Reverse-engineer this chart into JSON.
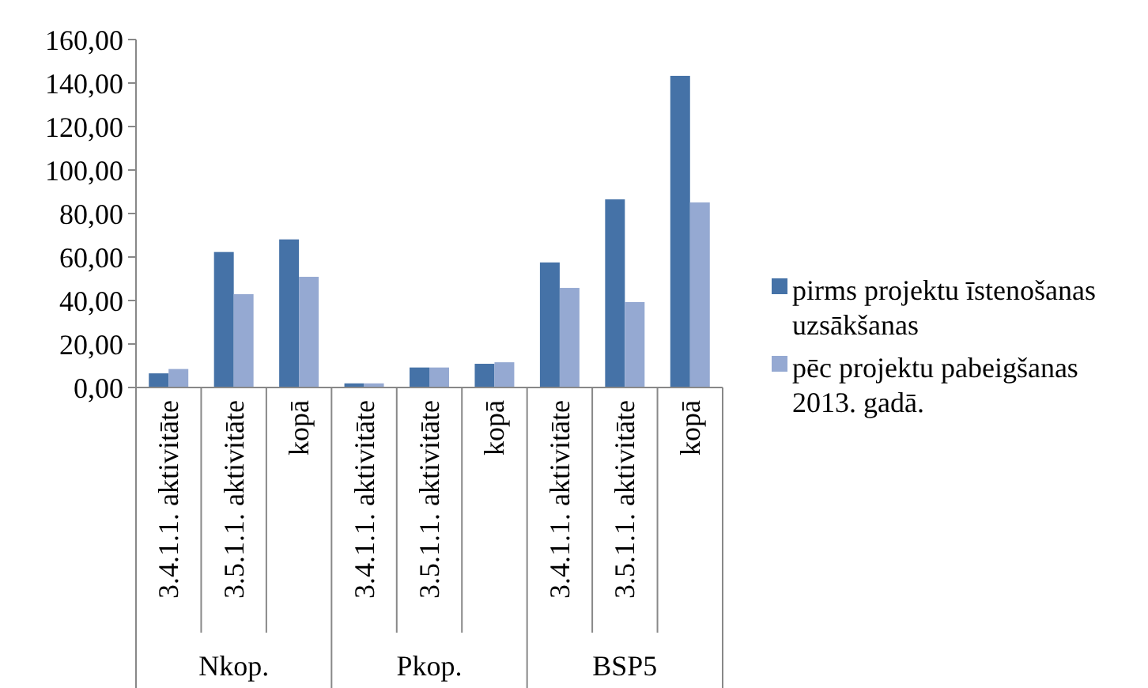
{
  "chart_data": {
    "type": "bar",
    "categories": [
      "3.4.1.1. aktivitāte",
      "3.5.1.1. aktivitāte",
      "kopā",
      "3.4.1.1. aktivitāte",
      "3.5.1.1. aktivitāte",
      "kopā",
      "3.4.1.1. aktivitāte",
      "3.5.1.1. aktivitāte",
      "kopā"
    ],
    "series": [
      {
        "name": "pirms projektu īstenošanas uzsākšanas",
        "color": "#4572a7",
        "values": [
          6.5,
          62.3,
          68.1,
          1.9,
          9.2,
          10.9,
          57.5,
          86.5,
          143.3
        ]
      },
      {
        "name": "pēc projektu pabeigšanas 2013. gadā.",
        "color": "#95a9d2",
        "values": [
          8.5,
          42.9,
          50.9,
          1.9,
          9.2,
          11.6,
          45.8,
          39.3,
          85.1
        ]
      }
    ],
    "annotations": [
      "Nkop.",
      "Pkop.",
      "BSP5"
    ],
    "ylim": [
      0,
      160
    ],
    "yticks": [
      {
        "value": 0,
        "label": "0,00"
      },
      {
        "value": 20,
        "label": "20,00"
      },
      {
        "value": 40,
        "label": "40,00"
      },
      {
        "value": 60,
        "label": "60,00"
      },
      {
        "value": 80,
        "label": "80,00"
      },
      {
        "value": 100,
        "label": "100,00"
      },
      {
        "value": 120,
        "label": "120,00"
      },
      {
        "value": 140,
        "label": "140,00"
      },
      {
        "value": 160,
        "label": "160,00"
      }
    ],
    "legend": "right"
  }
}
